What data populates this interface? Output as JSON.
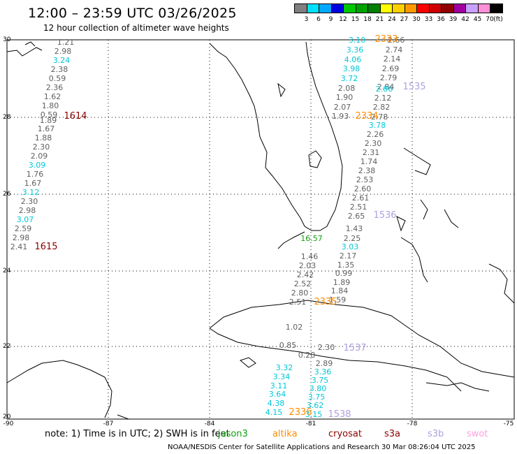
{
  "title": "12:00 – 23:59 UTC 03/26/2025",
  "subtitle": "12 hour collection of altimeter wave heights",
  "colorbar": {
    "colors": [
      "#808080",
      "#00e0ff",
      "#00a8ff",
      "#0000e0",
      "#00c800",
      "#00a000",
      "#008000",
      "#ffff00",
      "#ffd000",
      "#ff9900",
      "#ff0000",
      "#d00000",
      "#900000",
      "#a000a0",
      "#c8a0ff",
      "#ff90d8",
      "#000000"
    ],
    "ticks": [
      "3",
      "6",
      "9",
      "12",
      "15",
      "18",
      "21",
      "24",
      "27",
      "30",
      "33",
      "36",
      "39",
      "42",
      "45",
      "70",
      "(ft)"
    ]
  },
  "axes": {
    "lat_labels": [
      "30",
      "28",
      "26",
      "24",
      "22",
      "20"
    ],
    "lon_labels": [
      "-90",
      "-87",
      "-84",
      "-81",
      "-78",
      "-75"
    ]
  },
  "series_colors": {
    "jason": "#606060",
    "saral": "#00c8d8",
    "cryosat": "#8b0000",
    "s3a": "#ff8c00",
    "s3b": "#b0a0e0",
    "swot": "#ffa0e0",
    "green": "#10a010"
  },
  "tracks": [
    {
      "name": "track-gulf-west",
      "values": [
        {
          "t": "1.21",
          "c": "jason"
        },
        {
          "t": "2.98",
          "c": "jason"
        },
        {
          "t": "3.24",
          "c": "saral"
        },
        {
          "t": "2.38",
          "c": "jason"
        },
        {
          "t": "0.59",
          "c": "jason"
        },
        {
          "t": "2.36",
          "c": "jason"
        },
        {
          "t": "1.62",
          "c": "jason"
        },
        {
          "t": "1.80",
          "c": "jason"
        },
        {
          "t": "0.59",
          "c": "jason"
        },
        {
          "t": "1.89",
          "c": "jason"
        },
        {
          "t": "1.67",
          "c": "jason"
        },
        {
          "t": "1.88",
          "c": "jason"
        },
        {
          "t": "2.30",
          "c": "jason"
        },
        {
          "t": "2.09",
          "c": "jason"
        },
        {
          "t": "3.09",
          "c": "saral"
        },
        {
          "t": "1.76",
          "c": "jason"
        },
        {
          "t": "1.67",
          "c": "jason"
        },
        {
          "t": "3.12",
          "c": "saral"
        },
        {
          "t": "2.30",
          "c": "jason"
        },
        {
          "t": "2.98",
          "c": "jason"
        },
        {
          "t": "3.07",
          "c": "saral"
        },
        {
          "t": "2.59",
          "c": "jason"
        },
        {
          "t": "2.98",
          "c": "jason"
        },
        {
          "t": "2.41",
          "c": "jason"
        }
      ]
    },
    {
      "name": "track-atlantic-a",
      "values": [
        {
          "t": "3.10",
          "c": "saral"
        },
        {
          "t": "3.36",
          "c": "saral"
        },
        {
          "t": "4.06",
          "c": "saral"
        },
        {
          "t": "3.98",
          "c": "saral"
        },
        {
          "t": "3.72",
          "c": "saral"
        },
        {
          "t": "2.08",
          "c": "jason"
        },
        {
          "t": "1.90",
          "c": "jason"
        },
        {
          "t": "2.07",
          "c": "jason"
        },
        {
          "t": "1.93",
          "c": "jason"
        }
      ]
    },
    {
      "name": "track-atlantic-b",
      "values": [
        {
          "t": "2.66",
          "c": "jason"
        },
        {
          "t": "2.74",
          "c": "jason"
        },
        {
          "t": "2.14",
          "c": "jason"
        },
        {
          "t": "2.69",
          "c": "jason"
        },
        {
          "t": "2.79",
          "c": "jason"
        },
        {
          "t": "2.84",
          "c": "jason"
        },
        {
          "t": "2.86",
          "c": "saral"
        },
        {
          "t": "2.12",
          "c": "jason"
        },
        {
          "t": "2.82",
          "c": "jason"
        },
        {
          "t": "2.78",
          "c": "jason"
        }
      ]
    },
    {
      "name": "track-straits",
      "values": [
        {
          "t": "3.78",
          "c": "saral"
        },
        {
          "t": "2.26",
          "c": "jason"
        },
        {
          "t": "2.30",
          "c": "jason"
        },
        {
          "t": "2.31",
          "c": "jason"
        },
        {
          "t": "1.74",
          "c": "jason"
        },
        {
          "t": "2.38",
          "c": "jason"
        },
        {
          "t": "2.53",
          "c": "jason"
        },
        {
          "t": "2.60",
          "c": "jason"
        },
        {
          "t": "2.61",
          "c": "jason"
        },
        {
          "t": "2.51",
          "c": "jason"
        },
        {
          "t": "2.65",
          "c": "jason"
        },
        {
          "t": "1.43",
          "c": "jason"
        },
        {
          "t": "2.25",
          "c": "jason"
        },
        {
          "t": "3.03",
          "c": "saral"
        },
        {
          "t": "2.17",
          "c": "jason"
        },
        {
          "t": "1.35",
          "c": "jason"
        },
        {
          "t": "0.99",
          "c": "jason"
        },
        {
          "t": "1.89",
          "c": "jason"
        },
        {
          "t": "1.84",
          "c": "jason"
        },
        {
          "t": "1.59",
          "c": "jason"
        }
      ]
    },
    {
      "name": "track-cuba-north",
      "values": [
        {
          "t": "1.46",
          "c": "jason"
        },
        {
          "t": "2.03",
          "c": "jason"
        },
        {
          "t": "2.42",
          "c": "jason"
        },
        {
          "t": "2.52",
          "c": "jason"
        },
        {
          "t": "2.80",
          "c": "jason"
        },
        {
          "t": "2.51",
          "c": "jason"
        }
      ]
    },
    {
      "name": "track-caribbean-a",
      "values": [
        {
          "t": "3.32",
          "c": "saral"
        },
        {
          "t": "3.34",
          "c": "saral"
        },
        {
          "t": "3.11",
          "c": "saral"
        },
        {
          "t": "3.64",
          "c": "saral"
        },
        {
          "t": "4.38",
          "c": "saral"
        },
        {
          "t": "4.15",
          "c": "saral"
        }
      ]
    },
    {
      "name": "track-caribbean-b",
      "values": [
        {
          "t": "2.89",
          "c": "jason"
        },
        {
          "t": "3.36",
          "c": "saral"
        },
        {
          "t": "3.75",
          "c": "saral"
        },
        {
          "t": "3.80",
          "c": "saral"
        },
        {
          "t": "3.75",
          "c": "saral"
        },
        {
          "t": "3.62",
          "c": "saral"
        },
        {
          "t": "3.15",
          "c": "saral"
        }
      ]
    },
    {
      "name": "track-misc",
      "values": [
        {
          "t": "1.02",
          "c": "jason"
        },
        {
          "t": "0.85",
          "c": "jason"
        },
        {
          "t": "0.28",
          "c": "jason"
        },
        {
          "t": "2.30",
          "c": "jason"
        },
        {
          "t": "16.57",
          "c": "green"
        }
      ]
    }
  ],
  "pass_labels": [
    {
      "t": "2333",
      "c": "s3a"
    },
    {
      "t": "1535",
      "c": "s3b"
    },
    {
      "t": "1614",
      "c": "cryosat"
    },
    {
      "t": "2334",
      "c": "s3a"
    },
    {
      "t": "1536",
      "c": "s3b"
    },
    {
      "t": "1615",
      "c": "cryosat"
    },
    {
      "t": "2335",
      "c": "s3a"
    },
    {
      "t": "1537",
      "c": "s3b"
    },
    {
      "t": "2336",
      "c": "s3a"
    },
    {
      "t": "1538",
      "c": "s3b"
    }
  ],
  "note": "note:  1) Time is in UTC;  2) SWH is in feet",
  "satellites": [
    {
      "label": "jason3",
      "c": "green"
    },
    {
      "label": "altika",
      "c": "s3a"
    },
    {
      "label": "cryosat",
      "c": "cryosat"
    },
    {
      "label": "s3a",
      "c": "cryosat"
    },
    {
      "label": "s3b",
      "c": "s3b"
    },
    {
      "label": "swot",
      "c": "swot"
    }
  ],
  "footer": "NOAA/NESDIS Center for Satellite Applications and Research    30 Mar 08:26:04 UTC 2025"
}
